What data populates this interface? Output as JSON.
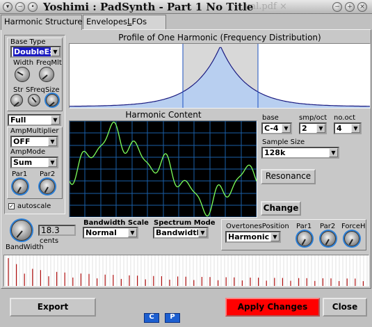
{
  "window": {
    "title": "Yoshimi : PadSynth - Part 1 No Title",
    "ghost_title": "ual.pdf ×"
  },
  "tabs": [
    {
      "label": "Harmonic Structure"
    },
    {
      "label_prefix": "Envelopes",
      "label_underline": "L",
      "label_suffix": "FOs"
    }
  ],
  "left_panel": {
    "base_type_label": "Base Type",
    "base_type_value": "DoubleExp",
    "width_label": "Width",
    "freqmlt_label": "FreqMlt",
    "str_label": "Str",
    "sfreq_label": "SFreq",
    "size_label": "Size",
    "full_value": "Full",
    "amp_multiplier_label": "AmpMultiplier",
    "amp_multiplier_value": "OFF",
    "amp_mode_label": "AmpMode",
    "amp_mode_value": "Sum",
    "par1_label": "Par1",
    "par2_label": "Par2",
    "autoscale_label": "autoscale",
    "autoscale_checked": "✓"
  },
  "profile": {
    "title": "Profile of One Harmonic (Frequency Distribution)"
  },
  "harmonic_content": {
    "title": "Harmonic Content"
  },
  "right_controls": {
    "base_label": "base",
    "base_value": "C-4",
    "smp_oct_label": "smp/oct",
    "smp_oct_value": "2",
    "no_oct_label": "no.oct",
    "no_oct_value": "4",
    "sample_size_label": "Sample Size",
    "sample_size_value": "128k",
    "resonance_label": "Resonance",
    "change_label": "Change"
  },
  "bandwidth": {
    "value": "18.3",
    "unit": "cents",
    "label": "BandWidth",
    "scale_label": "Bandwidth Scale",
    "scale_value": "Normal",
    "spectrum_mode_label": "Spectrum Mode",
    "spectrum_mode_value": "Bandwidth"
  },
  "overtones": {
    "label": "OvertonesPosition",
    "value": "Harmonic",
    "par1_label": "Par1",
    "par2_label": "Par2",
    "forceh_label": "ForceH"
  },
  "footer": {
    "export_label": "Export",
    "apply_label": "Apply Changes",
    "close_label": "Close",
    "c_label": "C",
    "p_label": "P"
  },
  "colors": {
    "accent_red": "#ff0000",
    "profile_fill": "#b8cff0",
    "scope_bg": "#000000",
    "scope_grid": "#1a5fa8",
    "scope_wave": "#7dff5a",
    "spectrum_line": "#b01010"
  }
}
